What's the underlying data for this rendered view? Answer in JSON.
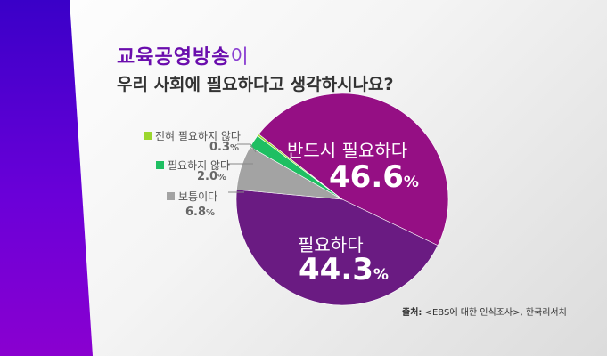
{
  "title": {
    "main": "교육공영방송",
    "suffix": "이",
    "question": "우리 사회에 필요하다고 생각하시나요?"
  },
  "source": {
    "label": "출처:",
    "text": "<EBS에 대한 인식조사>, 한국리서치"
  },
  "colors": {
    "accent": "#6a0dad",
    "bg_stripe": "#5b00d6"
  },
  "chart_data": {
    "type": "pie",
    "title": "교육공영방송이 우리 사회에 필요하다고 생각하시나요?",
    "slices": [
      {
        "label": "반드시 필요하다",
        "value": 46.6,
        "display": "46.6",
        "color": "#950f84"
      },
      {
        "label": "필요하다",
        "value": 44.3,
        "display": "44.3",
        "color": "#6a1b82"
      },
      {
        "label": "보통이다",
        "value": 6.8,
        "display": "6.8",
        "color": "#a3a3a3"
      },
      {
        "label": "필요하지 않다",
        "value": 2.0,
        "display": "2.0",
        "color": "#1fbf62"
      },
      {
        "label": "전혀 필요하지 않다",
        "value": 0.3,
        "display": "0.3",
        "color": "#9bd62e"
      }
    ],
    "unit": "%"
  }
}
